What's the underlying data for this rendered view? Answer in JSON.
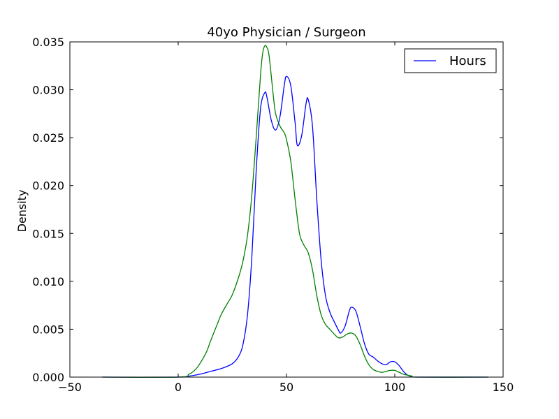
{
  "chart_data": {
    "type": "line",
    "title": "40yo Physician / Surgeon",
    "xlabel": "",
    "ylabel": "Density",
    "xlim": [
      -50,
      150
    ],
    "ylim": [
      0,
      0.035
    ],
    "xticks": [
      -50,
      0,
      50,
      100,
      150
    ],
    "xtick_labels": [
      "−50",
      "0",
      "50",
      "100",
      "150"
    ],
    "yticks": [
      0,
      0.005,
      0.01,
      0.015,
      0.02,
      0.025,
      0.03,
      0.035
    ],
    "ytick_labels": [
      "0.000",
      "0.005",
      "0.010",
      "0.015",
      "0.020",
      "0.025",
      "0.030",
      "0.035"
    ],
    "legend_position": "top-right",
    "grid": false,
    "series": [
      {
        "name": "Hours",
        "color": "#0000ff",
        "x": [
          -35,
          0,
          5,
          10,
          15,
          20,
          25,
          28,
          30,
          32,
          34,
          36,
          38,
          40,
          41,
          43,
          45,
          47,
          49,
          50,
          52,
          54,
          55,
          57,
          59,
          60,
          62,
          64,
          66,
          68,
          70,
          72,
          74,
          75,
          77,
          79,
          80,
          82,
          84,
          86,
          88,
          90,
          92,
          94,
          96,
          98,
          100,
          102,
          104,
          106,
          108,
          110,
          143
        ],
        "y": [
          0,
          0,
          0.0001,
          0.0003,
          0.0006,
          0.0009,
          0.0014,
          0.0022,
          0.0035,
          0.0065,
          0.0125,
          0.0215,
          0.028,
          0.0297,
          0.0292,
          0.0268,
          0.0258,
          0.0272,
          0.0305,
          0.0314,
          0.0304,
          0.0265,
          0.0242,
          0.0252,
          0.0285,
          0.029,
          0.0262,
          0.0185,
          0.0122,
          0.0085,
          0.0068,
          0.0058,
          0.0049,
          0.0046,
          0.0053,
          0.0069,
          0.0073,
          0.0069,
          0.0053,
          0.0035,
          0.0024,
          0.0021,
          0.0017,
          0.0014,
          0.0013,
          0.0016,
          0.0016,
          0.0012,
          0.0006,
          0.0002,
          0.0001,
          0,
          0
        ]
      },
      {
        "name": "",
        "color": "#008000",
        "x": [
          -35,
          0,
          5,
          8,
          10,
          13,
          15,
          18,
          20,
          23,
          25,
          28,
          30,
          32,
          34,
          36,
          38,
          39,
          40,
          41,
          42,
          44,
          45,
          47,
          49,
          50,
          52,
          54,
          56,
          58,
          60,
          62,
          64,
          66,
          68,
          70,
          72,
          74,
          76,
          78,
          80,
          82,
          84,
          86,
          88,
          90,
          92,
          94,
          96,
          98,
          100,
          102,
          104,
          106,
          108,
          110,
          143
        ],
        "y": [
          0,
          0,
          0.0003,
          0.0008,
          0.0014,
          0.0026,
          0.0038,
          0.0055,
          0.0066,
          0.0078,
          0.0086,
          0.0105,
          0.0122,
          0.0148,
          0.019,
          0.025,
          0.0315,
          0.0338,
          0.0346,
          0.0344,
          0.0335,
          0.0292,
          0.0275,
          0.0262,
          0.0255,
          0.0248,
          0.0225,
          0.0185,
          0.015,
          0.0138,
          0.013,
          0.0112,
          0.0085,
          0.0065,
          0.0055,
          0.005,
          0.0045,
          0.0041,
          0.0042,
          0.0045,
          0.0046,
          0.0043,
          0.0034,
          0.0022,
          0.0013,
          0.0008,
          0.0006,
          0.0005,
          0.0006,
          0.0007,
          0.0007,
          0.0005,
          0.0003,
          0.0002,
          0.0001,
          0,
          0
        ]
      }
    ]
  }
}
